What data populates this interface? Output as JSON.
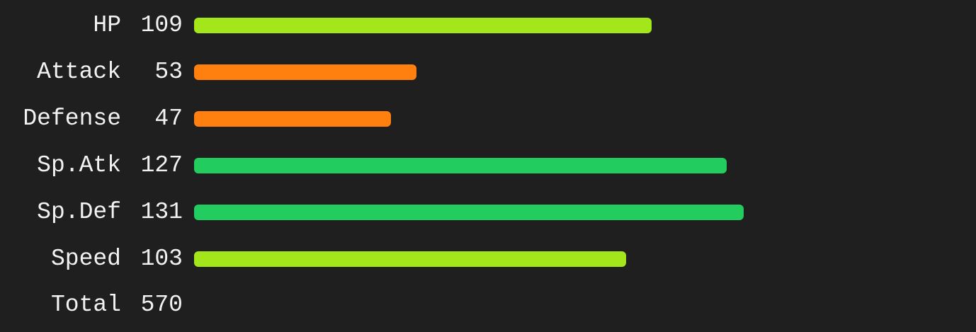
{
  "chart_data": {
    "type": "bar",
    "orientation": "horizontal",
    "categories": [
      "HP",
      "Attack",
      "Defense",
      "Sp.Atk",
      "Sp.Def",
      "Speed"
    ],
    "values": [
      109,
      53,
      47,
      127,
      131,
      103
    ],
    "bar_colors": [
      "#a3e61a",
      "#ff7f0f",
      "#ff7f0f",
      "#22cc5e",
      "#22cc5e",
      "#a3e61a"
    ],
    "value_scale_max": 131,
    "grid": false,
    "legend": "none",
    "total": {
      "label": "Total",
      "value": 570
    }
  }
}
